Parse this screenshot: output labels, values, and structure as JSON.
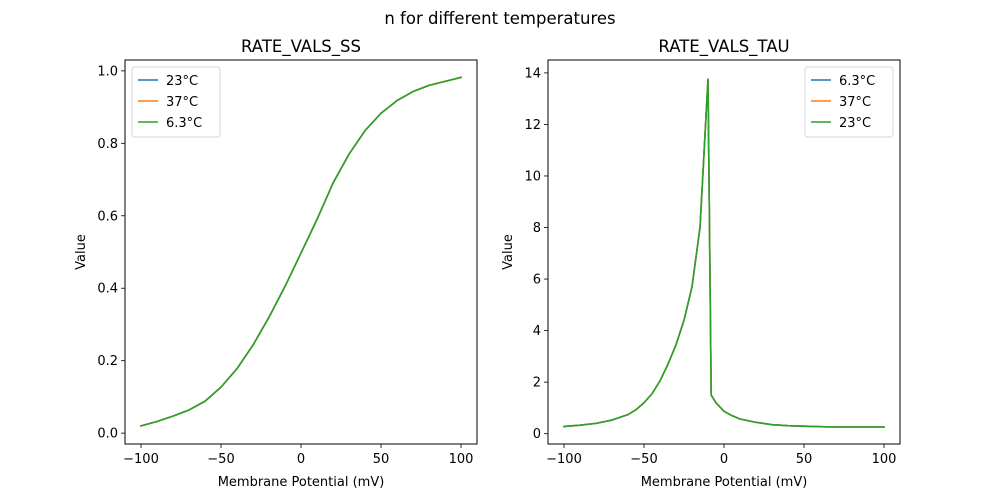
{
  "chart_data": [
    {
      "type": "line",
      "title": "RATE_VALS_SS",
      "xlabel": "Membrane Potential (mV)",
      "ylabel": "Value",
      "xlim": [
        -110,
        110
      ],
      "ylim": [
        -0.03,
        1.03
      ],
      "xticks": [
        -100,
        -50,
        0,
        50,
        100
      ],
      "xtick_labels": [
        "−100",
        "−50",
        "0",
        "50",
        "100"
      ],
      "yticks": [
        0.0,
        0.2,
        0.4,
        0.6,
        0.8,
        1.0
      ],
      "ytick_labels": [
        "0.0",
        "0.2",
        "0.4",
        "0.6",
        "0.8",
        "1.0"
      ],
      "grid": false,
      "legend_position": "upper-left",
      "x": [
        -100,
        -90,
        -80,
        -70,
        -60,
        -50,
        -40,
        -30,
        -20,
        -10,
        0,
        10,
        20,
        30,
        40,
        50,
        60,
        70,
        80,
        90,
        100
      ],
      "series": [
        {
          "name": "23°C",
          "color": "#1f77b4",
          "values": [
            0.02,
            0.032,
            0.047,
            0.064,
            0.088,
            0.127,
            0.178,
            0.243,
            0.32,
            0.405,
            0.497,
            0.59,
            0.69,
            0.77,
            0.835,
            0.883,
            0.918,
            0.943,
            0.96,
            0.971,
            0.982
          ]
        },
        {
          "name": "37°C",
          "color": "#ff7f0e",
          "values": [
            0.02,
            0.032,
            0.047,
            0.064,
            0.088,
            0.127,
            0.178,
            0.243,
            0.32,
            0.405,
            0.497,
            0.59,
            0.69,
            0.77,
            0.835,
            0.883,
            0.918,
            0.943,
            0.96,
            0.971,
            0.982
          ]
        },
        {
          "name": "6.3°C",
          "color": "#2ca02c",
          "values": [
            0.02,
            0.032,
            0.047,
            0.064,
            0.088,
            0.127,
            0.178,
            0.243,
            0.32,
            0.405,
            0.497,
            0.59,
            0.69,
            0.77,
            0.835,
            0.883,
            0.918,
            0.943,
            0.96,
            0.971,
            0.982
          ]
        }
      ]
    },
    {
      "type": "line",
      "title": "RATE_VALS_TAU",
      "xlabel": "Membrane Potential (mV)",
      "ylabel": "Value",
      "xlim": [
        -110,
        110
      ],
      "ylim": [
        -0.4,
        14.5
      ],
      "xticks": [
        -100,
        -50,
        0,
        50,
        100
      ],
      "xtick_labels": [
        "−100",
        "−50",
        "0",
        "50",
        "100"
      ],
      "yticks": [
        0,
        2,
        4,
        6,
        8,
        10,
        12,
        14
      ],
      "ytick_labels": [
        "0",
        "2",
        "4",
        "6",
        "8",
        "10",
        "12",
        "14"
      ],
      "grid": false,
      "legend_position": "upper-right",
      "x": [
        -100,
        -90,
        -80,
        -70,
        -60,
        -55,
        -50,
        -45,
        -40,
        -35,
        -30,
        -25,
        -20,
        -15,
        -10,
        -8,
        -5,
        0,
        5,
        10,
        20,
        30,
        40,
        50,
        60,
        70,
        80,
        90,
        100
      ],
      "series": [
        {
          "name": "6.3°C",
          "color": "#1f77b4",
          "values": [
            0.28,
            0.33,
            0.4,
            0.53,
            0.74,
            0.93,
            1.2,
            1.55,
            2.05,
            2.7,
            3.45,
            4.4,
            5.7,
            8.0,
            13.75,
            1.5,
            1.2,
            0.87,
            0.7,
            0.57,
            0.44,
            0.35,
            0.31,
            0.29,
            0.27,
            0.26,
            0.26,
            0.26,
            0.26
          ]
        },
        {
          "name": "37°C",
          "color": "#ff7f0e",
          "values": [
            0.28,
            0.33,
            0.4,
            0.53,
            0.74,
            0.93,
            1.2,
            1.55,
            2.05,
            2.7,
            3.45,
            4.4,
            5.7,
            8.0,
            13.75,
            1.5,
            1.2,
            0.87,
            0.7,
            0.57,
            0.44,
            0.35,
            0.31,
            0.29,
            0.27,
            0.26,
            0.26,
            0.26,
            0.26
          ]
        },
        {
          "name": "23°C",
          "color": "#2ca02c",
          "values": [
            0.28,
            0.33,
            0.4,
            0.53,
            0.74,
            0.93,
            1.2,
            1.55,
            2.05,
            2.7,
            3.45,
            4.4,
            5.7,
            8.0,
            13.75,
            1.5,
            1.2,
            0.87,
            0.7,
            0.57,
            0.44,
            0.35,
            0.31,
            0.29,
            0.27,
            0.26,
            0.26,
            0.26,
            0.26
          ]
        }
      ]
    }
  ],
  "figure": {
    "suptitle": "n for different temperatures"
  }
}
